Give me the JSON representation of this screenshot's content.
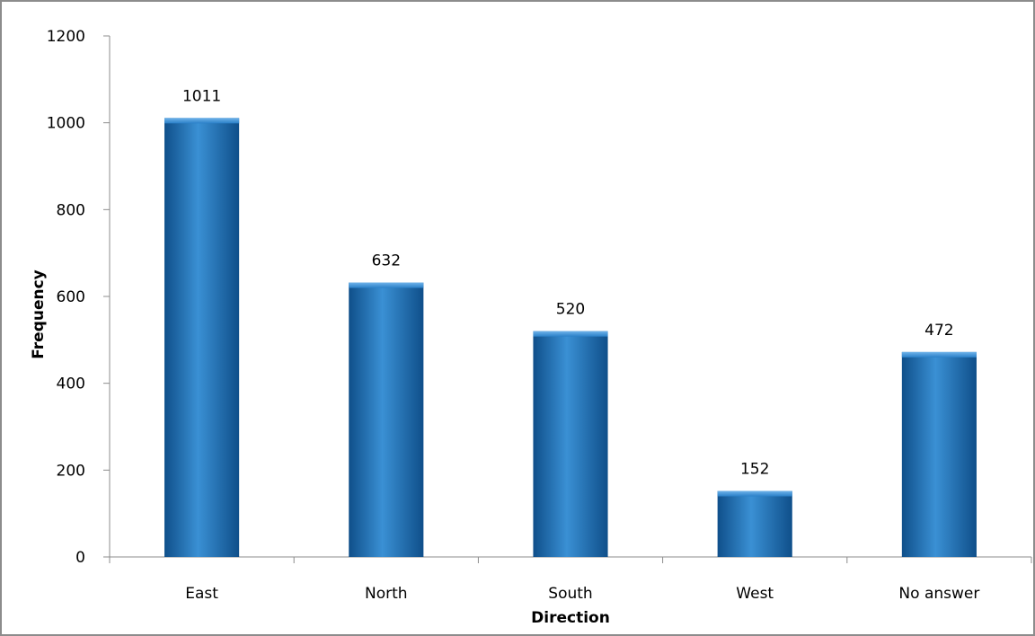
{
  "chart_data": {
    "type": "bar",
    "title": "",
    "xlabel": "Direction",
    "ylabel": "Frequency",
    "categories": [
      "East",
      "North",
      "South",
      "West",
      "No answer"
    ],
    "values": [
      1011,
      632,
      520,
      152,
      472
    ],
    "ylim": [
      0,
      1200
    ],
    "yticks": [
      0,
      200,
      400,
      600,
      800,
      1000,
      1200
    ],
    "grid": false,
    "legend": "none",
    "bar_color": "#2473b8",
    "bar_color_light": "#3a90d4",
    "bar_color_dark": "#0f4f8a"
  }
}
